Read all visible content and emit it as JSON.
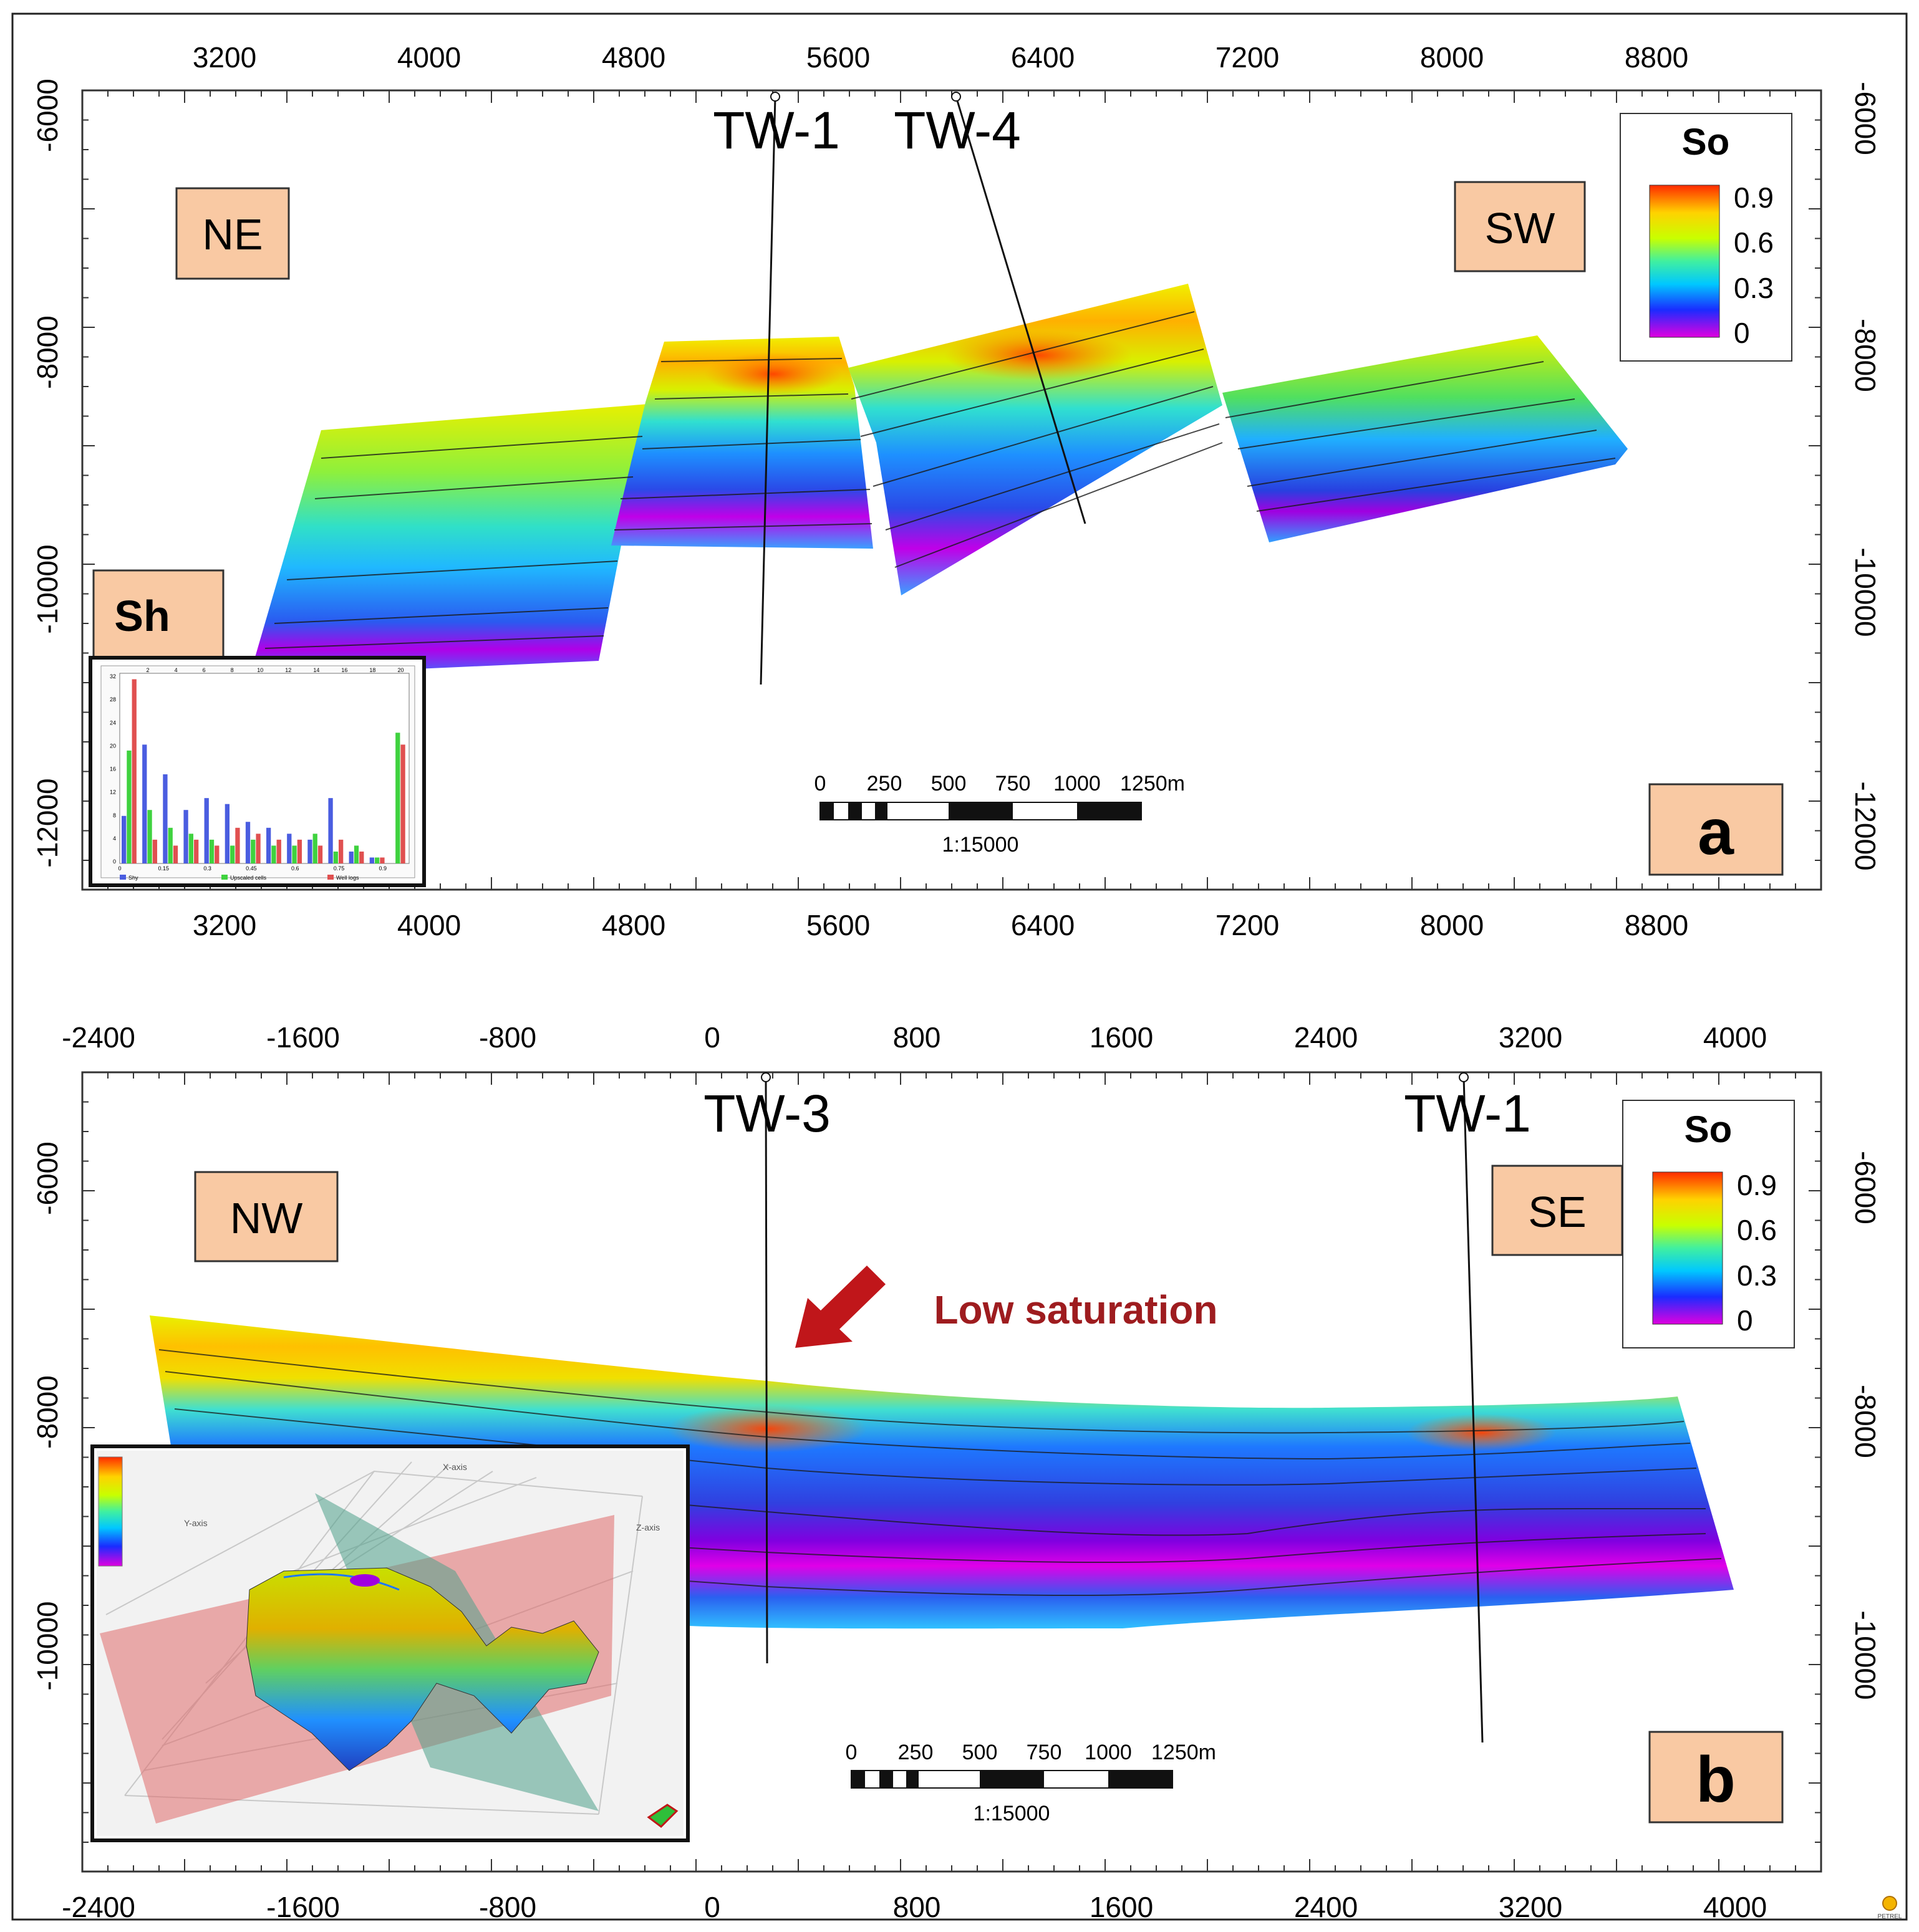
{
  "colors": {
    "tag_fill": "#f9c9a3",
    "arrow": "#c0161a",
    "low_sat_text": "#9e1c1f",
    "colorbar_stops": [
      "#e000e0",
      "#1a2cff",
      "#00c8ff",
      "#4df0a0",
      "#c8ff00",
      "#ffd200",
      "#ff2a00"
    ]
  },
  "panel_a": {
    "x_ticks": [
      "3200",
      "4000",
      "4800",
      "5600",
      "6400",
      "7200",
      "8000",
      "8800"
    ],
    "y_ticks": [
      "-6000",
      "-8000",
      "-10000",
      "-12000"
    ],
    "wells": [
      "TW-1",
      "TW-4"
    ],
    "direction_left": "NE",
    "direction_right": "SW",
    "legend_title": "So",
    "legend_ticks": [
      "0.9",
      "0.6",
      "0.3",
      "0"
    ],
    "panel_letter": "a",
    "inset_label": "Sh",
    "scale_numbers": [
      "0",
      "250",
      "500",
      "750",
      "1000",
      "1250m"
    ],
    "scale_ratio": "1:15000",
    "histogram": {
      "top_ticks": [
        "2",
        "4",
        "6",
        "8",
        "10",
        "12",
        "14",
        "16",
        "18",
        "20"
      ],
      "left_ticks": [
        "32",
        "28",
        "24",
        "20",
        "16",
        "12",
        "8",
        "4",
        "0"
      ],
      "bottom_ticks": [
        "0",
        "0.15",
        "0.3",
        "0.45",
        "0.6",
        "0.75",
        "0.9"
      ],
      "legend": [
        "Shy",
        "Upscaled cells",
        "Well logs"
      ],
      "series_colors": [
        "#4a5de0",
        "#3fd23f",
        "#e05050"
      ],
      "series_values": [
        [
          8,
          20,
          15,
          9,
          11,
          10,
          7,
          6,
          5,
          4,
          11,
          2,
          1,
          0
        ],
        [
          19,
          9,
          6,
          5,
          4,
          3,
          4,
          3,
          3,
          5,
          2,
          3,
          1,
          22
        ],
        [
          31,
          4,
          3,
          4,
          3,
          6,
          5,
          4,
          4,
          3,
          4,
          2,
          1,
          20
        ]
      ]
    }
  },
  "panel_b": {
    "x_ticks": [
      "-2400",
      "-1600",
      "-800",
      "0",
      "800",
      "1600",
      "2400",
      "3200",
      "4000"
    ],
    "y_ticks": [
      "-6000",
      "-8000",
      "-10000"
    ],
    "wells": [
      "TW-3",
      "TW-1"
    ],
    "direction_left": "NW",
    "direction_right": "SE",
    "legend_title": "So",
    "legend_ticks": [
      "0.9",
      "0.6",
      "0.3",
      "0"
    ],
    "panel_letter": "b",
    "annotation": "Low saturation",
    "scale_numbers": [
      "0",
      "250",
      "500",
      "750",
      "1000",
      "1250m"
    ],
    "scale_ratio": "1:15000",
    "inset_axis_labels": [
      "X-axis",
      "Y-axis",
      "Z-axis"
    ]
  },
  "logo_text": "PETREL"
}
